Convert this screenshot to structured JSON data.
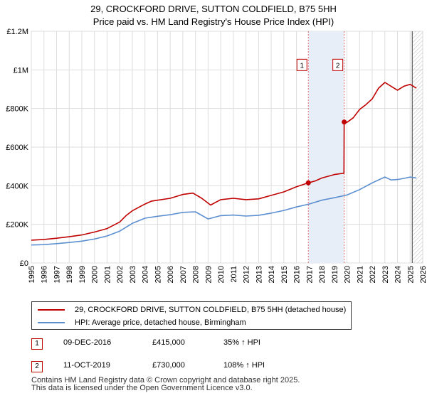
{
  "chart_data": {
    "type": "line",
    "title": "29, CROCKFORD DRIVE, SUTTON COLDFIELD, B75 5HH",
    "subtitle": "Price paid vs. HM Land Registry's House Price Index (HPI)",
    "xlim": [
      1995,
      2026
    ],
    "ylim": [
      0,
      1200000
    ],
    "x_ticks": [
      "1995",
      "1996",
      "1997",
      "1998",
      "1999",
      "2000",
      "2001",
      "2002",
      "2003",
      "2004",
      "2005",
      "2006",
      "2007",
      "2008",
      "2009",
      "2010",
      "2011",
      "2012",
      "2013",
      "2014",
      "2015",
      "2016",
      "2017",
      "2018",
      "2019",
      "2020",
      "2021",
      "2022",
      "2023",
      "2024",
      "2025",
      "2026"
    ],
    "y_ticks": [
      {
        "value": 0,
        "label": "£0"
      },
      {
        "value": 200000,
        "label": "£200K"
      },
      {
        "value": 400000,
        "label": "£400K"
      },
      {
        "value": 600000,
        "label": "£600K"
      },
      {
        "value": 800000,
        "label": "£800K"
      },
      {
        "value": 1000000,
        "label": "£1M"
      },
      {
        "value": 1200000,
        "label": "£1.2M"
      }
    ],
    "grid": true,
    "colors": {
      "property": "#c00000",
      "hpi": "#5b8fd0",
      "shade": "#e8eef8",
      "grid": "#dddddd"
    },
    "series": [
      {
        "name": "29, CROCKFORD DRIVE, SUTTON COLDFIELD, B75 5HH (detached house)",
        "color": "#c00000",
        "points": [
          [
            1995.0,
            118000
          ],
          [
            1996.0,
            122000
          ],
          [
            1997.0,
            128000
          ],
          [
            1998.0,
            136000
          ],
          [
            1999.0,
            145000
          ],
          [
            2000.0,
            160000
          ],
          [
            2001.0,
            178000
          ],
          [
            2002.0,
            212000
          ],
          [
            2002.5,
            245000
          ],
          [
            2003.0,
            270000
          ],
          [
            2004.0,
            305000
          ],
          [
            2004.5,
            320000
          ],
          [
            2005.0,
            325000
          ],
          [
            2006.0,
            335000
          ],
          [
            2007.0,
            355000
          ],
          [
            2007.8,
            362000
          ],
          [
            2008.5,
            335000
          ],
          [
            2009.2,
            300000
          ],
          [
            2010.0,
            328000
          ],
          [
            2011.0,
            335000
          ],
          [
            2012.0,
            328000
          ],
          [
            2013.0,
            332000
          ],
          [
            2014.0,
            350000
          ],
          [
            2015.0,
            368000
          ],
          [
            2016.0,
            395000
          ],
          [
            2016.94,
            415000
          ],
          [
            2017.5,
            425000
          ],
          [
            2018.0,
            440000
          ],
          [
            2019.0,
            458000
          ],
          [
            2019.76,
            465000
          ],
          [
            2019.78,
            730000
          ],
          [
            2020.0,
            728000
          ],
          [
            2020.5,
            752000
          ],
          [
            2021.0,
            795000
          ],
          [
            2021.5,
            820000
          ],
          [
            2022.0,
            850000
          ],
          [
            2022.5,
            905000
          ],
          [
            2023.0,
            935000
          ],
          [
            2023.5,
            915000
          ],
          [
            2024.0,
            895000
          ],
          [
            2024.5,
            915000
          ],
          [
            2025.0,
            925000
          ],
          [
            2025.5,
            905000
          ]
        ]
      },
      {
        "name": "HPI: Average price, detached house, Birmingham",
        "color": "#5b8fd0",
        "points": [
          [
            1995.0,
            93000
          ],
          [
            1996.0,
            95000
          ],
          [
            1997.0,
            100000
          ],
          [
            1998.0,
            106000
          ],
          [
            1999.0,
            113000
          ],
          [
            2000.0,
            124000
          ],
          [
            2001.0,
            140000
          ],
          [
            2002.0,
            165000
          ],
          [
            2003.0,
            205000
          ],
          [
            2004.0,
            232000
          ],
          [
            2005.0,
            242000
          ],
          [
            2006.0,
            250000
          ],
          [
            2007.0,
            262000
          ],
          [
            2008.0,
            265000
          ],
          [
            2009.0,
            228000
          ],
          [
            2010.0,
            245000
          ],
          [
            2011.0,
            248000
          ],
          [
            2012.0,
            243000
          ],
          [
            2013.0,
            247000
          ],
          [
            2014.0,
            258000
          ],
          [
            2015.0,
            272000
          ],
          [
            2016.0,
            290000
          ],
          [
            2017.0,
            305000
          ],
          [
            2018.0,
            325000
          ],
          [
            2019.0,
            338000
          ],
          [
            2020.0,
            352000
          ],
          [
            2021.0,
            380000
          ],
          [
            2022.0,
            415000
          ],
          [
            2023.0,
            445000
          ],
          [
            2023.5,
            430000
          ],
          [
            2024.0,
            432000
          ],
          [
            2024.5,
            438000
          ],
          [
            2025.0,
            445000
          ],
          [
            2025.5,
            440000
          ]
        ]
      }
    ],
    "shaded_region": [
      2016.94,
      2019.78
    ],
    "hatched_from": 2025.17,
    "sales": [
      {
        "id": "1",
        "date": "09-DEC-2016",
        "price": "£415,000",
        "hpi": "35% ↑ HPI",
        "x": 2016.94,
        "y": 415000,
        "label_y": 1000000
      },
      {
        "id": "2",
        "date": "11-OCT-2019",
        "price": "£730,000",
        "hpi": "108% ↑ HPI",
        "x": 2019.78,
        "y": 730000,
        "label_y": 1000000
      }
    ]
  },
  "legend": {
    "property_label": "29, CROCKFORD DRIVE, SUTTON COLDFIELD, B75 5HH (detached house)",
    "hpi_label": "HPI: Average price, detached house, Birmingham"
  },
  "footer": {
    "line1": "Contains HM Land Registry data © Crown copyright and database right 2025.",
    "line2": "This data is licensed under the Open Government Licence v3.0."
  }
}
